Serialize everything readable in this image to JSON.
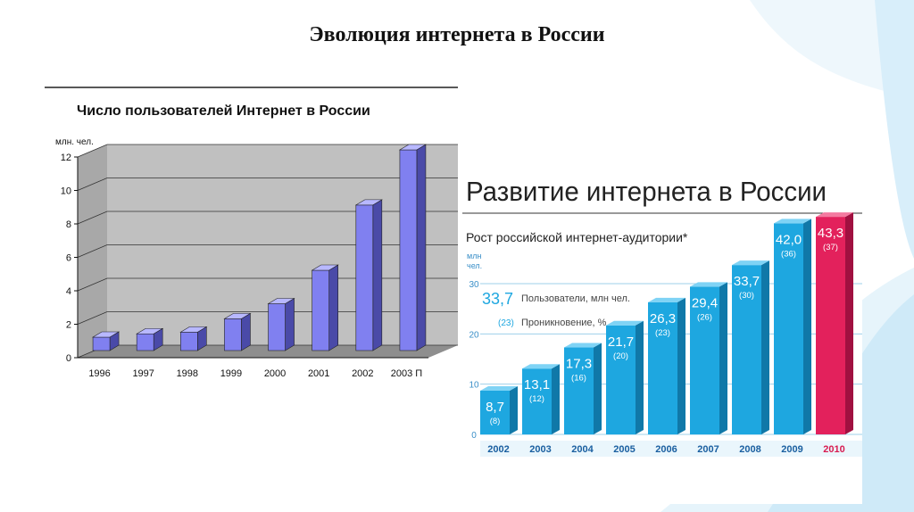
{
  "slide": {
    "title": "Эволюция интернета в России"
  },
  "colors": {
    "bar1_front": "#8080f0",
    "bar1_top": "#b8b8ff",
    "bar1_side": "#4a4aa8",
    "bar2_front": "#1ea7e0",
    "bar2_top": "#7fd3f5",
    "bar2_side": "#1078a8",
    "bar2_highlight_front": "#e3215c",
    "bar2_highlight_top": "#f47aa0",
    "bar2_highlight_side": "#a01040",
    "year_color": "#1a5fa0",
    "year_highlight": "#d81b50"
  },
  "chart_data": [
    {
      "type": "bar",
      "title": "Число пользователей Интернет в России",
      "ylabel": "млн. чел.",
      "categories": [
        "1996",
        "1997",
        "1998",
        "1999",
        "2000",
        "2001",
        "2002",
        "2003 П"
      ],
      "values": [
        0.8,
        1.0,
        1.1,
        1.9,
        2.8,
        4.8,
        8.7,
        12.0
      ],
      "yticks": [
        "0",
        "2",
        "4",
        "6",
        "8",
        "10",
        "12"
      ],
      "ylim": [
        0,
        12
      ],
      "grid": true
    },
    {
      "type": "bar",
      "title": "Развитие интернета в России",
      "subtitle": "Рост российской интернет-аудитории*",
      "ylabel": "млн чел.",
      "categories": [
        "2002",
        "2003",
        "2004",
        "2005",
        "2006",
        "2007",
        "2008",
        "2009",
        "2010"
      ],
      "value_labels": [
        "8,7",
        "13,1",
        "17,3",
        "21,7",
        "26,3",
        "29,4",
        "33,7",
        "42,0",
        "43,3"
      ],
      "values": [
        8.7,
        13.1,
        17.3,
        21.7,
        26.3,
        29.4,
        33.7,
        42.0,
        43.3
      ],
      "penetration_labels": [
        "(8)",
        "(12)",
        "(16)",
        "(20)",
        "(23)",
        "(26)",
        "(30)",
        "(36)",
        "(37)"
      ],
      "penetration": [
        8,
        12,
        16,
        20,
        23,
        26,
        30,
        36,
        37
      ],
      "yticks": [
        "0",
        "10",
        "20",
        "30"
      ],
      "ylim": [
        0,
        30
      ],
      "grid": true,
      "highlight_index": 8,
      "legend": {
        "value_example": "33,7",
        "value_text": "Пользователи, млн чел.",
        "pct_example": "(23)",
        "pct_text": "Проникновение, %"
      }
    }
  ]
}
